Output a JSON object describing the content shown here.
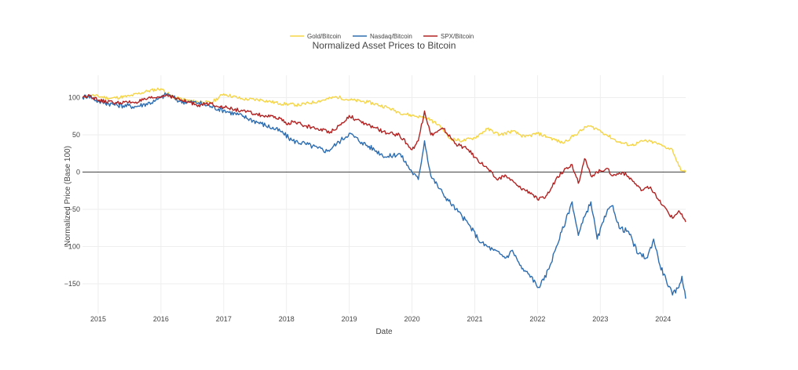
{
  "chart_data": {
    "type": "line",
    "title": "Normalized Asset Prices to Bitcoin",
    "xlabel": "Date",
    "ylabel": "Normalized Price (Base 100)",
    "xlim": [
      2014.75,
      2024.36
    ],
    "ylim": [
      -190,
      130
    ],
    "x_ticks": [
      2015,
      2016,
      2017,
      2018,
      2019,
      2020,
      2021,
      2022,
      2023,
      2024
    ],
    "y_ticks": [
      100,
      50,
      0,
      -50,
      -100,
      -150
    ],
    "y_tick_labels": [
      "100",
      "50",
      "0",
      "−50",
      "−100",
      "−150"
    ],
    "grid": true,
    "zero_line": true,
    "legend_position": "top-center",
    "series": [
      {
        "name": "Gold/Bitcoin",
        "color": "#f5d547",
        "points": [
          [
            2014.75,
            100
          ],
          [
            2014.9,
            103
          ],
          [
            2015.2,
            99
          ],
          [
            2015.5,
            102
          ],
          [
            2015.8,
            109
          ],
          [
            2016.0,
            112
          ],
          [
            2016.2,
            100
          ],
          [
            2016.5,
            95
          ],
          [
            2016.8,
            93
          ],
          [
            2017.0,
            105
          ],
          [
            2017.3,
            98
          ],
          [
            2017.6,
            97
          ],
          [
            2017.9,
            92
          ],
          [
            2018.2,
            90
          ],
          [
            2018.5,
            95
          ],
          [
            2018.8,
            101
          ],
          [
            2019.0,
            97
          ],
          [
            2019.3,
            94
          ],
          [
            2019.6,
            87
          ],
          [
            2019.8,
            80
          ],
          [
            2020.0,
            76
          ],
          [
            2020.15,
            74
          ],
          [
            2020.25,
            72
          ],
          [
            2020.45,
            62
          ],
          [
            2020.6,
            45
          ],
          [
            2020.8,
            42
          ],
          [
            2021.0,
            46
          ],
          [
            2021.2,
            58
          ],
          [
            2021.4,
            50
          ],
          [
            2021.6,
            55
          ],
          [
            2021.8,
            47
          ],
          [
            2022.0,
            52
          ],
          [
            2022.2,
            46
          ],
          [
            2022.4,
            39
          ],
          [
            2022.6,
            50
          ],
          [
            2022.8,
            62
          ],
          [
            2022.95,
            58
          ],
          [
            2023.1,
            50
          ],
          [
            2023.3,
            40
          ],
          [
            2023.5,
            36
          ],
          [
            2023.7,
            42
          ],
          [
            2023.85,
            40
          ],
          [
            2024.0,
            35
          ],
          [
            2024.15,
            30
          ],
          [
            2024.25,
            8
          ],
          [
            2024.3,
            2
          ],
          [
            2024.36,
            0
          ]
        ]
      },
      {
        "name": "Nasdaq/Bitcoin",
        "color": "#2e6db0",
        "points": [
          [
            2014.75,
            100
          ],
          [
            2014.85,
            103
          ],
          [
            2015.0,
            95
          ],
          [
            2015.3,
            90
          ],
          [
            2015.6,
            88
          ],
          [
            2015.9,
            95
          ],
          [
            2016.0,
            100
          ],
          [
            2016.1,
            105
          ],
          [
            2016.3,
            95
          ],
          [
            2016.6,
            93
          ],
          [
            2016.8,
            88
          ],
          [
            2017.0,
            83
          ],
          [
            2017.3,
            75
          ],
          [
            2017.6,
            65
          ],
          [
            2017.9,
            55
          ],
          [
            2018.1,
            42
          ],
          [
            2018.3,
            38
          ],
          [
            2018.5,
            32
          ],
          [
            2018.65,
            28
          ],
          [
            2018.8,
            38
          ],
          [
            2019.0,
            52
          ],
          [
            2019.2,
            40
          ],
          [
            2019.4,
            30
          ],
          [
            2019.6,
            20
          ],
          [
            2019.8,
            25
          ],
          [
            2020.0,
            0
          ],
          [
            2020.1,
            -10
          ],
          [
            2020.2,
            42
          ],
          [
            2020.3,
            -5
          ],
          [
            2020.5,
            -30
          ],
          [
            2020.7,
            -50
          ],
          [
            2020.9,
            -70
          ],
          [
            2021.1,
            -95
          ],
          [
            2021.3,
            -105
          ],
          [
            2021.5,
            -115
          ],
          [
            2021.6,
            -105
          ],
          [
            2021.75,
            -130
          ],
          [
            2021.9,
            -140
          ],
          [
            2022.0,
            -155
          ],
          [
            2022.1,
            -145
          ],
          [
            2022.2,
            -125
          ],
          [
            2022.3,
            -100
          ],
          [
            2022.45,
            -65
          ],
          [
            2022.55,
            -40
          ],
          [
            2022.65,
            -85
          ],
          [
            2022.75,
            -60
          ],
          [
            2022.85,
            -40
          ],
          [
            2022.95,
            -90
          ],
          [
            2023.1,
            -55
          ],
          [
            2023.2,
            -45
          ],
          [
            2023.3,
            -75
          ],
          [
            2023.45,
            -80
          ],
          [
            2023.6,
            -110
          ],
          [
            2023.75,
            -115
          ],
          [
            2023.85,
            -90
          ],
          [
            2023.95,
            -125
          ],
          [
            2024.05,
            -145
          ],
          [
            2024.15,
            -165
          ],
          [
            2024.25,
            -155
          ],
          [
            2024.3,
            -140
          ],
          [
            2024.36,
            -170
          ]
        ]
      },
      {
        "name": "SPX/Bitcoin",
        "color": "#b22222",
        "points": [
          [
            2014.75,
            100
          ],
          [
            2014.85,
            104
          ],
          [
            2015.0,
            96
          ],
          [
            2015.3,
            93
          ],
          [
            2015.6,
            94
          ],
          [
            2015.9,
            100
          ],
          [
            2016.0,
            101
          ],
          [
            2016.1,
            104
          ],
          [
            2016.3,
            97
          ],
          [
            2016.6,
            90
          ],
          [
            2016.8,
            92
          ],
          [
            2017.0,
            87
          ],
          [
            2017.3,
            82
          ],
          [
            2017.6,
            76
          ],
          [
            2017.9,
            72
          ],
          [
            2018.0,
            64
          ],
          [
            2018.1,
            68
          ],
          [
            2018.3,
            62
          ],
          [
            2018.5,
            58
          ],
          [
            2018.7,
            54
          ],
          [
            2018.9,
            66
          ],
          [
            2019.0,
            76
          ],
          [
            2019.2,
            66
          ],
          [
            2019.4,
            60
          ],
          [
            2019.6,
            52
          ],
          [
            2019.8,
            50
          ],
          [
            2020.0,
            30
          ],
          [
            2020.1,
            42
          ],
          [
            2020.2,
            82
          ],
          [
            2020.3,
            50
          ],
          [
            2020.5,
            58
          ],
          [
            2020.7,
            38
          ],
          [
            2020.9,
            30
          ],
          [
            2021.0,
            20
          ],
          [
            2021.2,
            5
          ],
          [
            2021.35,
            -10
          ],
          [
            2021.5,
            -5
          ],
          [
            2021.7,
            -20
          ],
          [
            2021.9,
            -28
          ],
          [
            2022.0,
            -37
          ],
          [
            2022.1,
            -35
          ],
          [
            2022.2,
            -25
          ],
          [
            2022.3,
            -8
          ],
          [
            2022.45,
            5
          ],
          [
            2022.55,
            10
          ],
          [
            2022.65,
            -15
          ],
          [
            2022.75,
            18
          ],
          [
            2022.85,
            -5
          ],
          [
            2022.95,
            0
          ],
          [
            2023.1,
            5
          ],
          [
            2023.2,
            -5
          ],
          [
            2023.35,
            0
          ],
          [
            2023.5,
            -10
          ],
          [
            2023.65,
            -25
          ],
          [
            2023.8,
            -20
          ],
          [
            2023.9,
            -35
          ],
          [
            2024.0,
            -45
          ],
          [
            2024.15,
            -62
          ],
          [
            2024.25,
            -52
          ],
          [
            2024.36,
            -67
          ]
        ]
      }
    ]
  }
}
